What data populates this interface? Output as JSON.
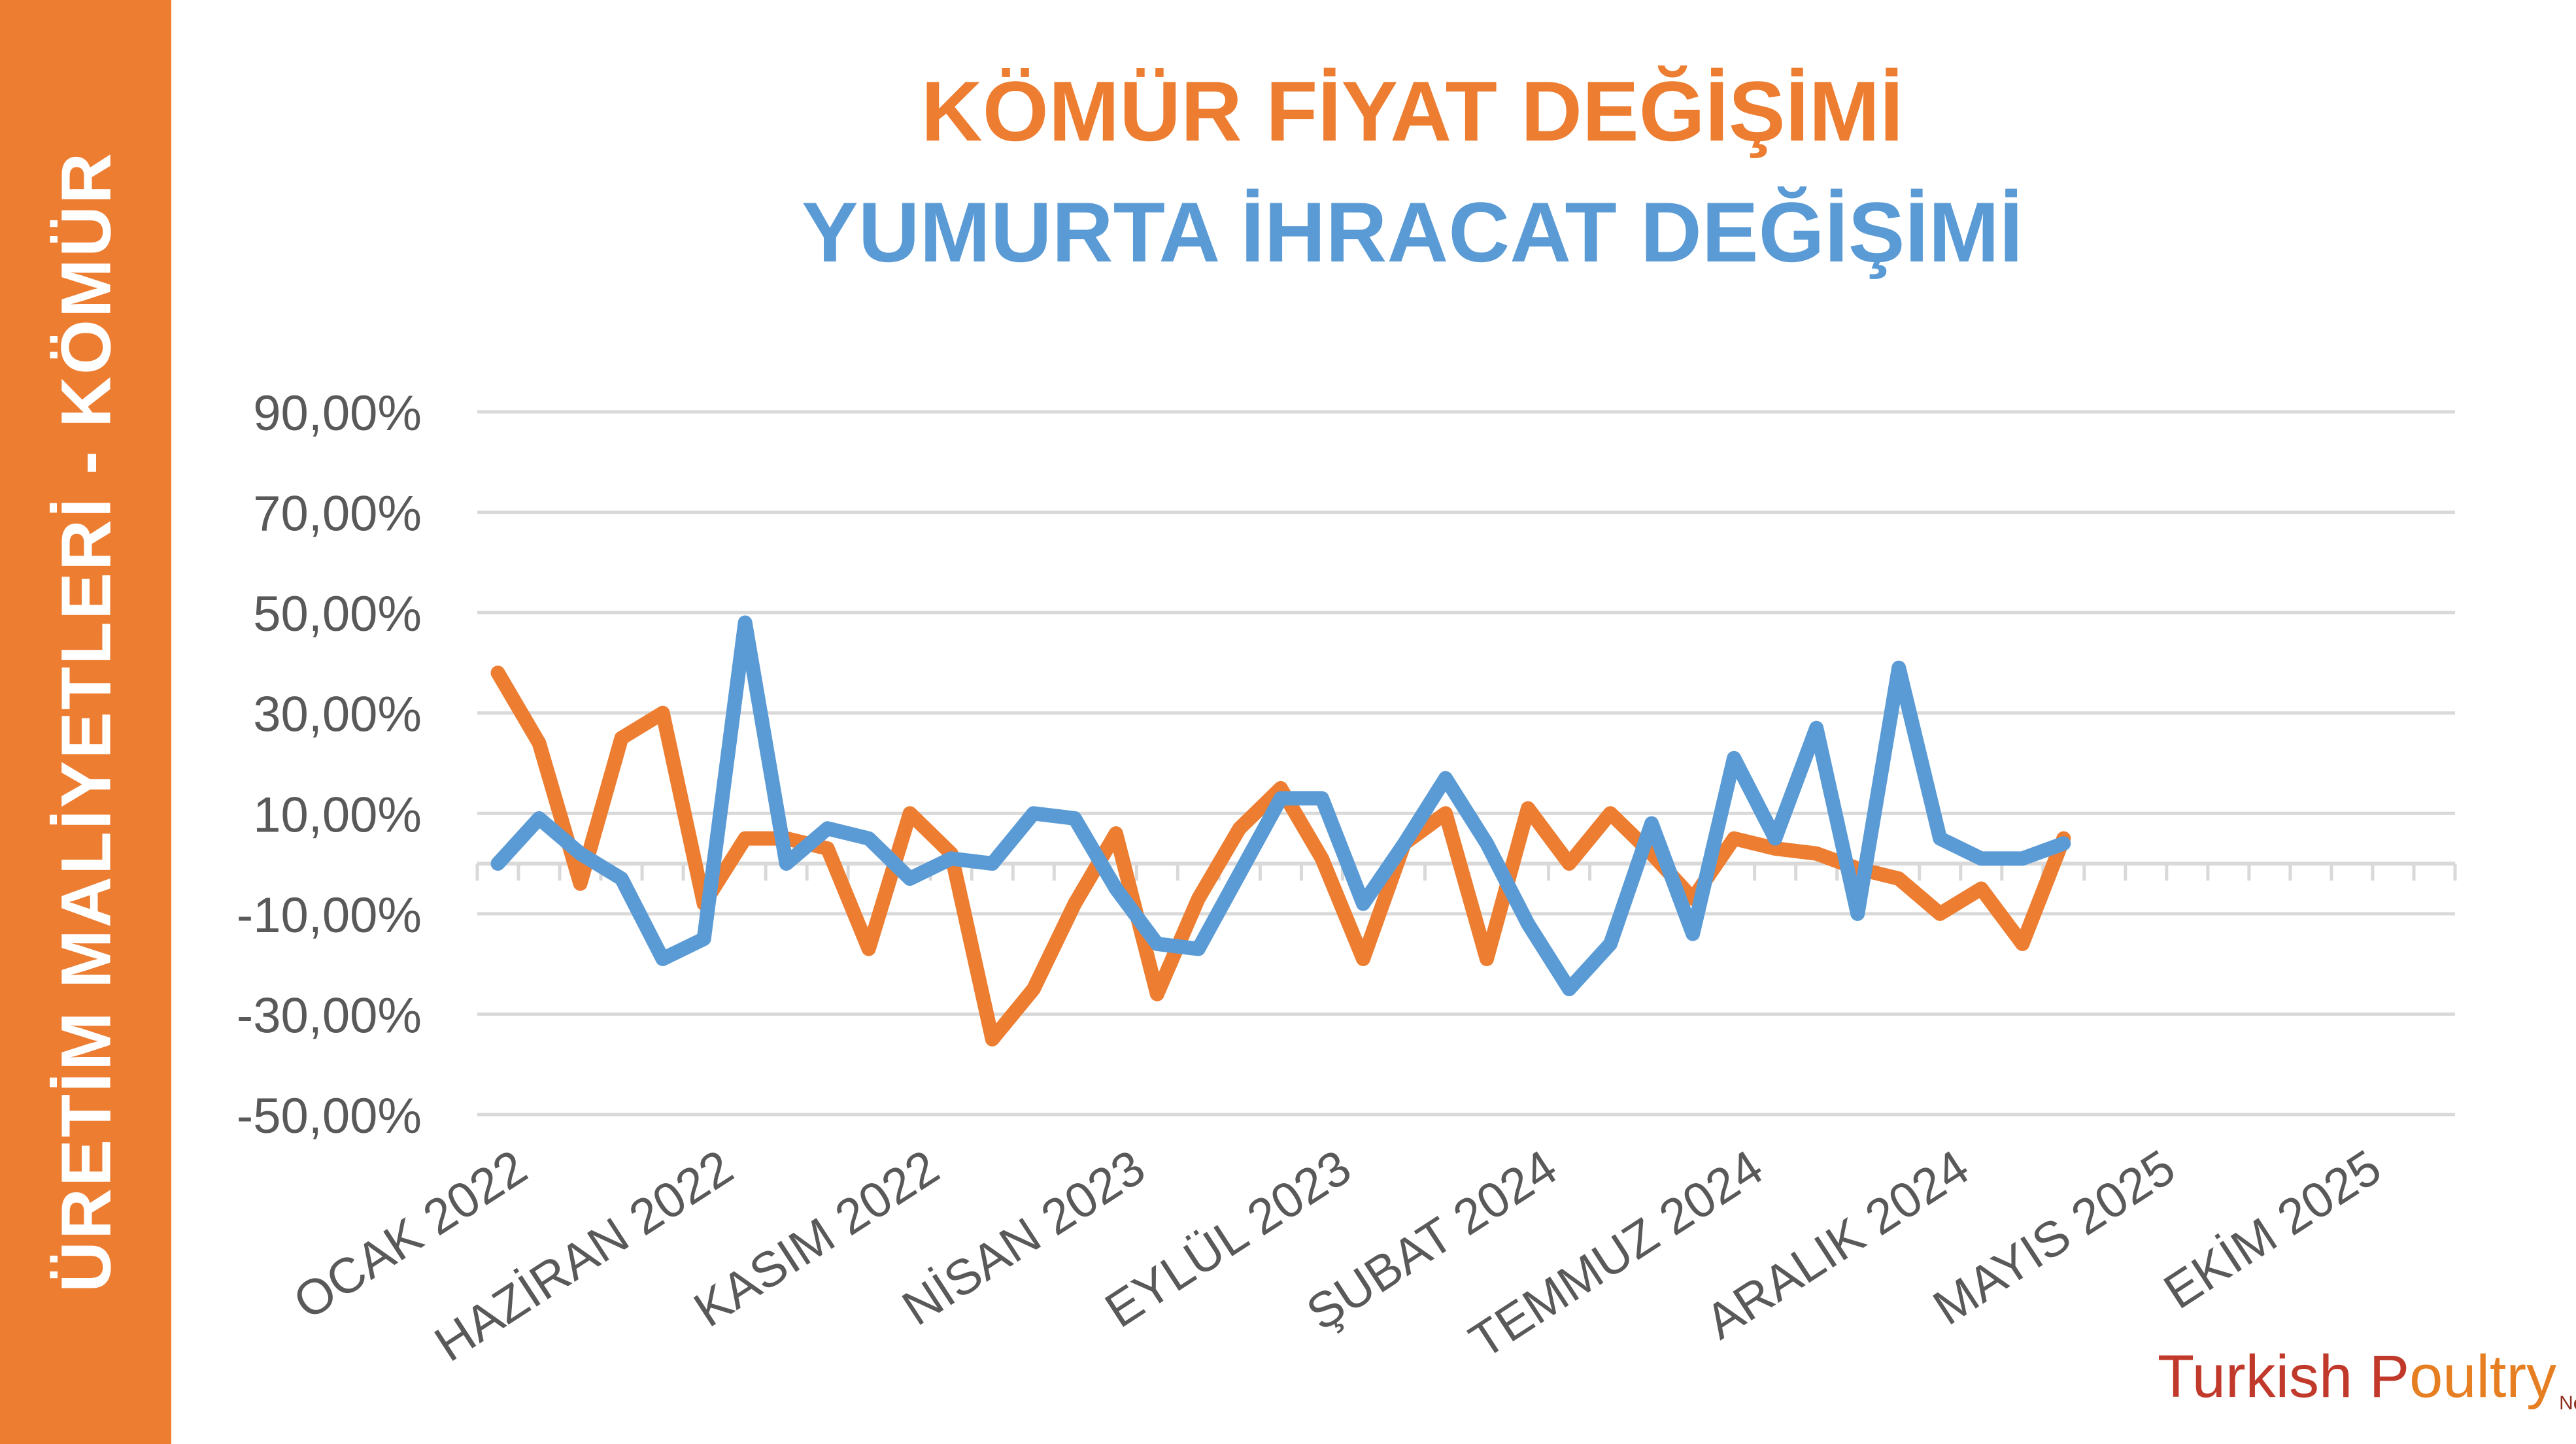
{
  "side_banner": {
    "text": "ÜRETİM MALİYETLERİ - KÖMÜR"
  },
  "titles": {
    "line1": "KÖMÜR FİYAT DEĞİŞİMİ",
    "line2": "YUMURTA İHRACAT DEĞİŞİMİ"
  },
  "logo": {
    "part1": "Turkish P",
    "part2": "oultry",
    "suffix": "Net"
  },
  "colors": {
    "banner": "#ED7D31",
    "orange": "#ED7D31",
    "blue": "#5B9BD5",
    "grid": "#D9D9D9",
    "axis_text": "#595959"
  },
  "chart_data": {
    "type": "line",
    "title": "",
    "xlabel": "",
    "ylabel": "",
    "ylim": [
      -50,
      90
    ],
    "yticks": [
      -50,
      -30,
      -10,
      10,
      30,
      50,
      70,
      90
    ],
    "ytick_labels": [
      "-50,00%",
      "-30,00%",
      "-10,00%",
      "10,00%",
      "30,00%",
      "50,00%",
      "70,00%",
      "90,00%"
    ],
    "grid": true,
    "legend": "none",
    "x_slots": 48,
    "x_labels": [
      {
        "index": 0,
        "text": "OCAK 2022"
      },
      {
        "index": 5,
        "text": "HAZİRAN 2022"
      },
      {
        "index": 10,
        "text": "KASIM 2022"
      },
      {
        "index": 15,
        "text": "NİSAN 2023"
      },
      {
        "index": 20,
        "text": "EYLÜL 2023"
      },
      {
        "index": 25,
        "text": "ŞUBAT 2024"
      },
      {
        "index": 30,
        "text": "TEMMUZ 2024"
      },
      {
        "index": 35,
        "text": "ARALIK 2024"
      },
      {
        "index": 40,
        "text": "MAYIS 2025"
      },
      {
        "index": 45,
        "text": "EKİM 2025"
      }
    ],
    "series": [
      {
        "color": "#ED7D31",
        "values": [
          38,
          24,
          -4,
          25,
          30,
          -8,
          5,
          5,
          3,
          -17,
          10,
          2,
          -35,
          -25,
          -8,
          6,
          -26,
          -7,
          7,
          15,
          1,
          -19,
          4,
          10,
          -19,
          11,
          0,
          10,
          2,
          -7,
          5,
          3,
          2,
          -1,
          -3,
          -10,
          -5,
          -16,
          5
        ]
      },
      {
        "color": "#5B9BD5",
        "values": [
          0,
          9,
          2,
          -3,
          -19,
          -15,
          48,
          0,
          7,
          5,
          -3,
          1,
          0,
          10,
          9,
          -5,
          -16,
          -17,
          -2,
          13,
          13,
          -8,
          4,
          17,
          4,
          -12,
          -25,
          -16,
          8,
          -14,
          21,
          5,
          27,
          -10,
          39,
          5,
          1,
          1,
          4
        ]
      }
    ]
  }
}
